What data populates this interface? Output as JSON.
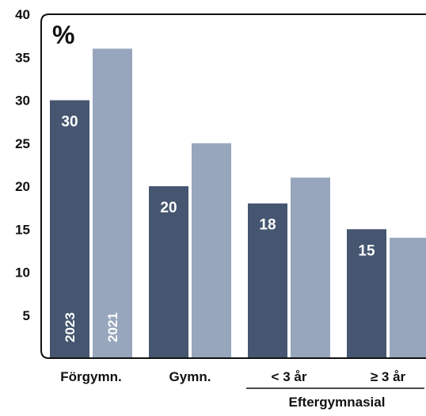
{
  "chart_data": {
    "type": "bar",
    "unit_label": "%",
    "categories": [
      "Förgymn.",
      "Gymn.",
      "< 3 år",
      "≥  3 år"
    ],
    "group_label": "Eftergymnasial",
    "series": [
      {
        "name": "2023",
        "values": [
          30,
          20,
          18,
          15
        ],
        "color": "#465670"
      },
      {
        "name": "2021",
        "values": [
          36,
          25,
          21,
          14
        ],
        "color": "#97a6bc"
      }
    ],
    "data_labels": [
      "30",
      "20",
      "18",
      "15"
    ],
    "y_ticks": [
      5,
      10,
      15,
      20,
      25,
      30,
      35,
      40
    ],
    "ylim": [
      0,
      40
    ],
    "grid": false,
    "legend": "inside-first-bars"
  }
}
